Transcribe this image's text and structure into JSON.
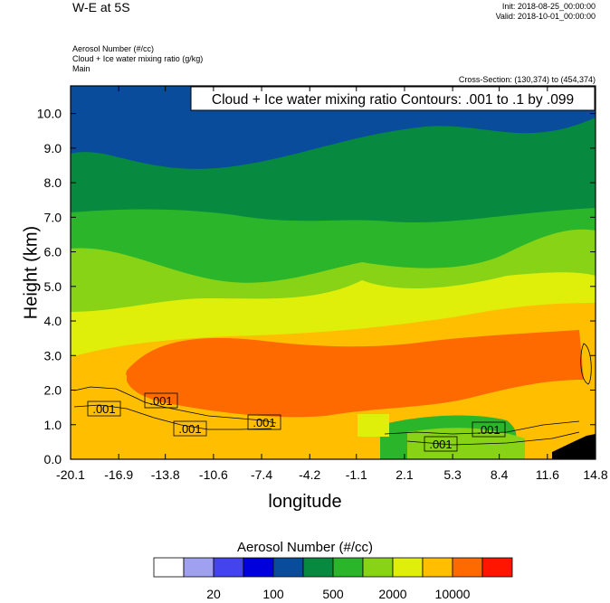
{
  "header": {
    "title": "W-E at 5S",
    "init": "Init: 2018-08-25_00:00:00",
    "valid": "Valid: 2018-10-01_00:00:00",
    "fields": [
      "Aerosol Number   (#/cc)",
      "Cloud + Ice water mixing ratio   (g/kg)",
      "Main"
    ],
    "cross_section": "Cross-Section: (130,374) to (454,374)"
  },
  "chart_data": {
    "type": "heatmap",
    "contour_title": "Cloud + Ice water mixing ratio Contours: .001 to .1 by .099",
    "contour_labels": [
      ".001",
      ".001",
      ".001",
      ".001",
      ".001",
      ".001"
    ],
    "xlabel": "longitude",
    "ylabel": "Height (km)",
    "x_ticks": [
      "-20.1",
      "-16.9",
      "-13.8",
      "-10.6",
      "-7.4",
      "-4.2",
      "-1.1",
      "2.1",
      "5.3",
      "8.4",
      "11.6",
      "14.8"
    ],
    "y_ticks": [
      "0.0",
      "1.0",
      "2.0",
      "3.0",
      "4.0",
      "5.0",
      "6.0",
      "7.0",
      "8.0",
      "9.0",
      "10.0"
    ],
    "xlim": [
      -20.1,
      14.8
    ],
    "ylim": [
      0,
      10.8
    ],
    "colorbar": {
      "title": "Aerosol Number  (#/cc)",
      "colors": [
        "#ffffff",
        "#a0a0f0",
        "#4444ee",
        "#0000dd",
        "#0a4c9c",
        "#078a3f",
        "#2bb52a",
        "#88d316",
        "#e0ef0a",
        "#ffbf00",
        "#ff6a00",
        "#ff1500"
      ],
      "labels": [
        "20",
        "100",
        "500",
        "2000",
        "10000"
      ]
    }
  }
}
